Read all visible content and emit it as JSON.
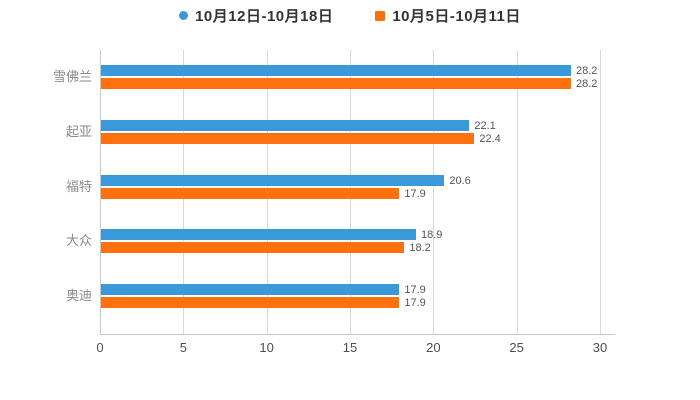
{
  "legend": {
    "items": [
      {
        "label": "10月12日-10月18日",
        "marker": "circle-icon",
        "color": "#3a99d8"
      },
      {
        "label": "10月5日-10月11日",
        "marker": "square-icon",
        "color": "#ff700f"
      }
    ]
  },
  "chart_data": {
    "type": "bar",
    "orientation": "horizontal",
    "title": "",
    "xlabel": "",
    "ylabel": "",
    "categories": [
      "雪佛兰",
      "起亚",
      "福特",
      "大众",
      "奥迪"
    ],
    "series": [
      {
        "name": "10月12日-10月18日",
        "color": "#3a99d8",
        "values": [
          28.2,
          22.1,
          20.6,
          18.9,
          17.9
        ]
      },
      {
        "name": "10月5日-10月11日",
        "color": "#ff700f",
        "values": [
          28.2,
          22.4,
          17.9,
          18.2,
          17.9
        ]
      }
    ],
    "x_ticks": [
      0,
      5,
      10,
      15,
      20,
      25,
      30
    ],
    "xlim": [
      0,
      30.9
    ],
    "grid": true,
    "legend_position": "top-center",
    "colors": {
      "gridline": "#d9d9d9",
      "axis": "#c8c8c8",
      "tick_label": "#4d4d4d",
      "category_label": "#8a8a8a",
      "value_label": "#555555"
    }
  }
}
